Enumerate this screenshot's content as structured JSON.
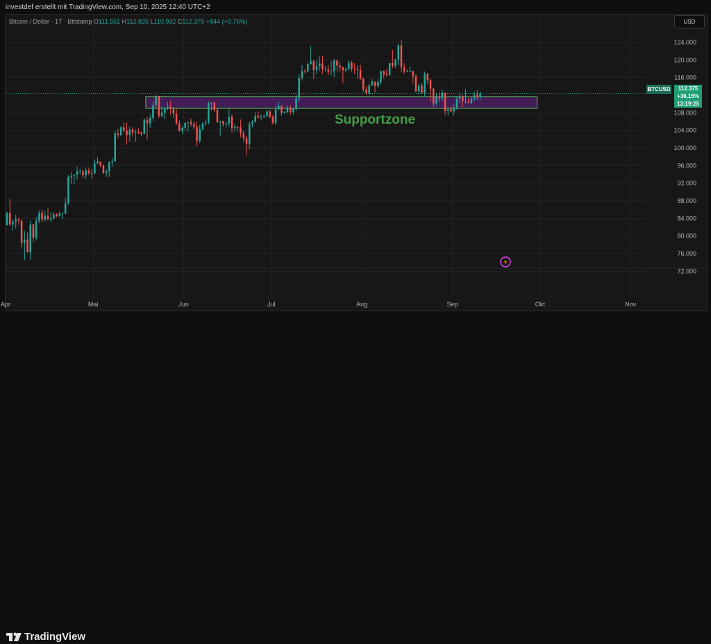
{
  "header": {
    "credit": "investdef erstellt mit TradingView.com, Sep 10, 2025 12:40 UTC+2"
  },
  "legend": {
    "symbol": "Bitcoin / Dollar · 1T · Bitstamp",
    "o_label": "O",
    "o_value": "111.551",
    "h_label": "H",
    "h_value": "112.835",
    "l_label": "L",
    "l_value": "110.932",
    "c_label": "C",
    "c_value": "112.375",
    "change": "+844 (+0,76%)"
  },
  "currency_button": "USD",
  "price_tag": {
    "ticker": "BTCUSD",
    "price": "112.375",
    "change_pct": "+36,15%",
    "countdown": "13:19:25"
  },
  "annotation": {
    "label": "Supportzone"
  },
  "brand": {
    "name": "TradingView"
  },
  "colors": {
    "up": "#26a69a",
    "down": "#ef5350",
    "zone_fill": "#4a1e60",
    "zone_border": "#4caf50",
    "annotation_text": "#43a047"
  },
  "chart_data": {
    "type": "candlestick",
    "x_tick_labels": [
      "Apr",
      "Mai",
      "Jun",
      "Jul",
      "Aug",
      "Sep",
      "Okt",
      "Nov"
    ],
    "y_tick_labels": [
      "72.000",
      "76.000",
      "80.000",
      "84.000",
      "88.000",
      "92.000",
      "96.000",
      "100.000",
      "104.000",
      "108.000",
      "116.000",
      "120.000",
      "124.000"
    ],
    "y_ticks": [
      72000,
      76000,
      80000,
      84000,
      88000,
      92000,
      96000,
      100000,
      104000,
      108000,
      116000,
      120000,
      124000
    ],
    "ylim": [
      70000,
      127000
    ],
    "x_range": [
      "2025-04-01",
      "2025-11-05"
    ],
    "support_zone": {
      "from": "2025-05-19",
      "to": "2025-09-30",
      "low": 109000,
      "high": 111700
    },
    "price_line": 112375,
    "candles": [
      [
        "2025-04-01",
        82500,
        85500,
        82400,
        85200
      ],
      [
        "2025-04-02",
        85200,
        88500,
        82300,
        82600
      ],
      [
        "2025-04-03",
        82600,
        83900,
        81200,
        83200
      ],
      [
        "2025-04-04",
        83200,
        84800,
        81700,
        83800
      ],
      [
        "2025-04-05",
        83800,
        84200,
        82500,
        83500
      ],
      [
        "2025-04-06",
        83500,
        83700,
        77200,
        78400
      ],
      [
        "2025-04-07",
        78400,
        81200,
        74500,
        79200
      ],
      [
        "2025-04-08",
        79200,
        80800,
        76200,
        76300
      ],
      [
        "2025-04-09",
        76300,
        83500,
        74600,
        82600
      ],
      [
        "2025-04-10",
        82600,
        82800,
        78400,
        79600
      ],
      [
        "2025-04-11",
        79600,
        84200,
        78900,
        83400
      ],
      [
        "2025-04-12",
        83400,
        85800,
        82900,
        85300
      ],
      [
        "2025-04-13",
        85300,
        86000,
        83100,
        83700
      ],
      [
        "2025-04-14",
        83700,
        85800,
        83200,
        84600
      ],
      [
        "2025-04-15",
        84600,
        86300,
        83600,
        83700
      ],
      [
        "2025-04-16",
        83700,
        85500,
        83100,
        84000
      ],
      [
        "2025-04-17",
        84000,
        85400,
        83700,
        84900
      ],
      [
        "2025-04-18",
        84900,
        85200,
        84300,
        84500
      ],
      [
        "2025-04-19",
        84500,
        85600,
        84400,
        85100
      ],
      [
        "2025-04-20",
        85100,
        85300,
        83900,
        85100
      ],
      [
        "2025-04-21",
        85100,
        88600,
        85000,
        87500
      ],
      [
        "2025-04-22",
        87500,
        93800,
        87100,
        93400
      ],
      [
        "2025-04-23",
        93400,
        94600,
        91800,
        93700
      ],
      [
        "2025-04-24",
        93700,
        94000,
        91700,
        93900
      ],
      [
        "2025-04-25",
        93900,
        95800,
        92800,
        94700
      ],
      [
        "2025-04-26",
        94700,
        95300,
        93900,
        94700
      ],
      [
        "2025-04-27",
        94700,
        95200,
        93100,
        93800
      ],
      [
        "2025-04-28",
        93800,
        95600,
        92900,
        94900
      ],
      [
        "2025-04-29",
        94900,
        95500,
        93800,
        94300
      ],
      [
        "2025-04-30",
        94300,
        95200,
        92900,
        94200
      ],
      [
        "2025-05-01",
        94200,
        97400,
        94100,
        96500
      ],
      [
        "2025-05-02",
        96500,
        97900,
        96300,
        96900
      ],
      [
        "2025-05-03",
        96900,
        96900,
        95700,
        96000
      ],
      [
        "2025-05-04",
        96000,
        96300,
        94100,
        94300
      ],
      [
        "2025-05-05",
        94300,
        95200,
        93500,
        94700
      ],
      [
        "2025-05-06",
        94700,
        96900,
        93400,
        96800
      ],
      [
        "2025-05-07",
        96800,
        97700,
        95800,
        97000
      ],
      [
        "2025-05-08",
        97000,
        103900,
        96900,
        103300
      ],
      [
        "2025-05-09",
        103300,
        104300,
        102300,
        102900
      ],
      [
        "2025-05-10",
        102900,
        104900,
        102800,
        104700
      ],
      [
        "2025-05-11",
        104700,
        105800,
        103400,
        104000
      ],
      [
        "2025-05-12",
        104000,
        105800,
        100800,
        102900
      ],
      [
        "2025-05-13",
        102900,
        104900,
        101500,
        104200
      ],
      [
        "2025-05-14",
        104200,
        104700,
        102600,
        103500
      ],
      [
        "2025-05-15",
        103500,
        104200,
        101400,
        103700
      ],
      [
        "2025-05-16",
        103700,
        104500,
        103100,
        103600
      ],
      [
        "2025-05-17",
        103600,
        103700,
        102600,
        103200
      ],
      [
        "2025-05-18",
        103200,
        106700,
        103100,
        106400
      ],
      [
        "2025-05-19",
        106400,
        107100,
        102000,
        105600
      ],
      [
        "2025-05-20",
        105600,
        107700,
        104600,
        106800
      ],
      [
        "2025-05-21",
        106800,
        110700,
        106100,
        109700
      ],
      [
        "2025-05-22",
        109700,
        112000,
        109300,
        111800
      ],
      [
        "2025-05-23",
        111800,
        111900,
        106800,
        107300
      ],
      [
        "2025-05-24",
        107300,
        109500,
        106900,
        108000
      ],
      [
        "2025-05-25",
        108000,
        109300,
        106600,
        108900
      ],
      [
        "2025-05-26",
        108900,
        110400,
        108600,
        109400
      ],
      [
        "2025-05-27",
        109400,
        110700,
        107600,
        108900
      ],
      [
        "2025-05-28",
        108900,
        109300,
        106800,
        107800
      ],
      [
        "2025-05-29",
        107800,
        108900,
        105300,
        105600
      ],
      [
        "2025-05-30",
        105600,
        106300,
        103700,
        103900
      ],
      [
        "2025-05-31",
        103900,
        104900,
        103100,
        104600
      ],
      [
        "2025-06-01",
        104600,
        105800,
        103900,
        105700
      ],
      [
        "2025-06-02",
        105700,
        105900,
        103700,
        105900
      ],
      [
        "2025-06-03",
        105900,
        106700,
        104900,
        105400
      ],
      [
        "2025-06-04",
        105400,
        106000,
        104200,
        104800
      ],
      [
        "2025-06-05",
        104800,
        105900,
        100400,
        101600
      ],
      [
        "2025-06-06",
        101600,
        105200,
        101100,
        104300
      ],
      [
        "2025-06-07",
        104300,
        105900,
        103900,
        105600
      ],
      [
        "2025-06-08",
        105600,
        106500,
        105100,
        105800
      ],
      [
        "2025-06-09",
        105800,
        110500,
        105300,
        110300
      ],
      [
        "2025-06-10",
        110300,
        110400,
        108400,
        110300
      ],
      [
        "2025-06-11",
        110300,
        110500,
        108200,
        108700
      ],
      [
        "2025-06-12",
        108700,
        108900,
        105700,
        105900
      ],
      [
        "2025-06-13",
        105900,
        106200,
        102800,
        106100
      ],
      [
        "2025-06-14",
        106100,
        106200,
        104800,
        105400
      ],
      [
        "2025-06-15",
        105400,
        105900,
        104600,
        105600
      ],
      [
        "2025-06-16",
        105600,
        108900,
        104800,
        107100
      ],
      [
        "2025-06-17",
        107100,
        107700,
        103400,
        104500
      ],
      [
        "2025-06-18",
        104500,
        105500,
        103600,
        104800
      ],
      [
        "2025-06-19",
        104800,
        105000,
        103900,
        104700
      ],
      [
        "2025-06-20",
        104700,
        106500,
        102400,
        103300
      ],
      [
        "2025-06-21",
        103300,
        104000,
        101300,
        102200
      ],
      [
        "2025-06-22",
        102200,
        102700,
        98300,
        100900
      ],
      [
        "2025-06-23",
        100900,
        106000,
        99700,
        105400
      ],
      [
        "2025-06-24",
        105400,
        106300,
        104700,
        106000
      ],
      [
        "2025-06-25",
        106000,
        108100,
        105700,
        107300
      ],
      [
        "2025-06-26",
        107300,
        108300,
        106600,
        106900
      ],
      [
        "2025-06-27",
        106900,
        107700,
        106300,
        107100
      ],
      [
        "2025-06-28",
        107100,
        107600,
        106800,
        107300
      ],
      [
        "2025-06-29",
        107300,
        108500,
        107100,
        108300
      ],
      [
        "2025-06-30",
        108300,
        108700,
        106800,
        107100
      ],
      [
        "2025-07-01",
        107100,
        107500,
        105300,
        105700
      ],
      [
        "2025-07-02",
        105700,
        109700,
        105200,
        108800
      ],
      [
        "2025-07-03",
        108800,
        110500,
        108600,
        109600
      ],
      [
        "2025-07-04",
        109600,
        109700,
        107300,
        108000
      ],
      [
        "2025-07-05",
        108000,
        108400,
        107800,
        108200
      ],
      [
        "2025-07-06",
        108200,
        109700,
        107800,
        109200
      ],
      [
        "2025-07-07",
        109200,
        109700,
        107500,
        108200
      ],
      [
        "2025-07-08",
        108200,
        109000,
        107500,
        108900
      ],
      [
        "2025-07-09",
        108900,
        112000,
        108400,
        111300
      ],
      [
        "2025-07-10",
        111300,
        116800,
        110500,
        115900
      ],
      [
        "2025-07-11",
        115900,
        118900,
        115300,
        117500
      ],
      [
        "2025-07-12",
        117500,
        118000,
        116900,
        117400
      ],
      [
        "2025-07-13",
        117400,
        119500,
        117200,
        119100
      ],
      [
        "2025-07-14",
        119100,
        123200,
        118900,
        119800
      ],
      [
        "2025-07-15",
        119800,
        119900,
        115700,
        117700
      ],
      [
        "2025-07-16",
        117700,
        120000,
        116900,
        118600
      ],
      [
        "2025-07-17",
        118600,
        120800,
        117500,
        119200
      ],
      [
        "2025-07-18",
        119200,
        120900,
        116800,
        117900
      ],
      [
        "2025-07-19",
        117900,
        118600,
        117300,
        117900
      ],
      [
        "2025-07-20",
        117900,
        118900,
        116500,
        117300
      ],
      [
        "2025-07-21",
        117300,
        119700,
        116500,
        117400
      ],
      [
        "2025-07-22",
        117400,
        120200,
        116100,
        119900
      ],
      [
        "2025-07-23",
        119900,
        120000,
        117300,
        118700
      ],
      [
        "2025-07-24",
        118700,
        119500,
        117300,
        118300
      ],
      [
        "2025-07-25",
        118300,
        118500,
        114700,
        117600
      ],
      [
        "2025-07-26",
        117600,
        118300,
        117300,
        117900
      ],
      [
        "2025-07-27",
        117900,
        119800,
        117800,
        119400
      ],
      [
        "2025-07-28",
        119400,
        119800,
        117400,
        118000
      ],
      [
        "2025-07-29",
        118000,
        119300,
        116900,
        117900
      ],
      [
        "2025-07-30",
        117900,
        118800,
        115800,
        117800
      ],
      [
        "2025-07-31",
        117800,
        118900,
        115500,
        115700
      ],
      [
        "2025-08-01",
        115700,
        116000,
        112700,
        113300
      ],
      [
        "2025-08-02",
        113300,
        114000,
        112000,
        112500
      ],
      [
        "2025-08-03",
        112500,
        114700,
        112000,
        114200
      ],
      [
        "2025-08-04",
        114200,
        115700,
        114100,
        115100
      ],
      [
        "2025-08-05",
        115100,
        115100,
        112600,
        114100
      ],
      [
        "2025-08-06",
        114100,
        115600,
        113600,
        115000
      ],
      [
        "2025-08-07",
        115000,
        117500,
        114300,
        117500
      ],
      [
        "2025-08-08",
        117500,
        117700,
        115900,
        116700
      ],
      [
        "2025-08-09",
        116700,
        117900,
        116300,
        116500
      ],
      [
        "2025-08-10",
        116500,
        119300,
        116500,
        119300
      ],
      [
        "2025-08-11",
        119300,
        122300,
        118100,
        118700
      ],
      [
        "2025-08-12",
        118700,
        120300,
        118200,
        120100
      ],
      [
        "2025-08-13",
        120100,
        123700,
        118900,
        123300
      ],
      [
        "2025-08-14",
        123300,
        124500,
        117200,
        118300
      ],
      [
        "2025-08-15",
        118300,
        119300,
        116800,
        117400
      ],
      [
        "2025-08-16",
        117400,
        117900,
        117200,
        117500
      ],
      [
        "2025-08-17",
        117500,
        118600,
        117200,
        117500
      ],
      [
        "2025-08-18",
        117500,
        117600,
        114700,
        116300
      ],
      [
        "2025-08-19",
        116300,
        116800,
        112700,
        112900
      ],
      [
        "2025-08-20",
        112900,
        114600,
        112400,
        114200
      ],
      [
        "2025-08-21",
        114200,
        114800,
        112600,
        112500
      ],
      [
        "2025-08-22",
        112500,
        117400,
        111700,
        116900
      ],
      [
        "2025-08-23",
        116900,
        117000,
        114500,
        115400
      ],
      [
        "2025-08-24",
        115400,
        115700,
        110700,
        113500
      ],
      [
        "2025-08-25",
        113500,
        113600,
        109300,
        110100
      ],
      [
        "2025-08-26",
        110100,
        112500,
        109700,
        111800
      ],
      [
        "2025-08-27",
        111800,
        112700,
        110400,
        111300
      ],
      [
        "2025-08-28",
        111300,
        113300,
        110800,
        112500
      ],
      [
        "2025-08-29",
        112500,
        112600,
        107400,
        108400
      ],
      [
        "2025-08-30",
        108400,
        108900,
        107400,
        108800
      ],
      [
        "2025-08-31",
        108800,
        109500,
        108100,
        108300
      ],
      [
        "2025-09-01",
        108300,
        109900,
        107300,
        109200
      ],
      [
        "2025-09-02",
        109200,
        111800,
        108700,
        111200
      ],
      [
        "2025-09-03",
        111200,
        112600,
        110200,
        111700
      ],
      [
        "2025-09-04",
        111700,
        112100,
        109300,
        110700
      ],
      [
        "2025-09-05",
        110700,
        113400,
        110000,
        110600
      ],
      [
        "2025-09-06",
        110600,
        111300,
        110200,
        110200
      ],
      [
        "2025-09-07",
        110200,
        111600,
        110000,
        111100
      ],
      [
        "2025-09-08",
        111100,
        112900,
        110600,
        112100
      ],
      [
        "2025-09-09",
        112100,
        113200,
        110900,
        111500
      ],
      [
        "2025-09-10",
        111551,
        112835,
        110932,
        112375
      ]
    ]
  }
}
